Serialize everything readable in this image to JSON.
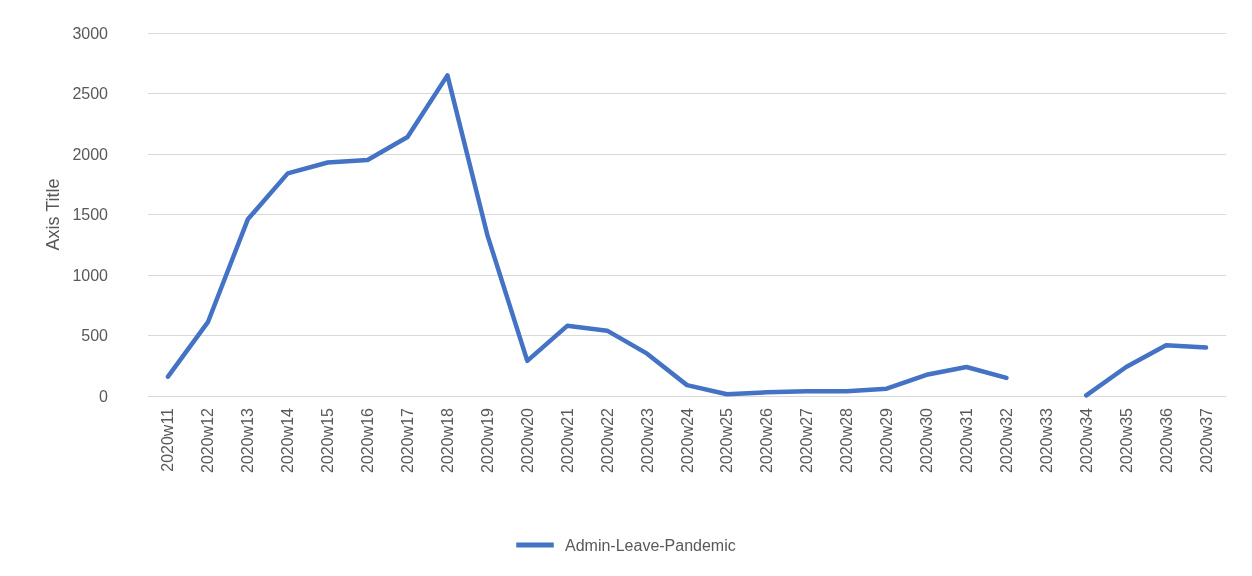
{
  "chart_data": {
    "type": "line",
    "ylabel": "Axis Title",
    "categories": [
      "2020w11",
      "2020w12",
      "2020w13",
      "2020w14",
      "2020w15",
      "2020w16",
      "2020w17",
      "2020w18",
      "2020w19",
      "2020w20",
      "2020w21",
      "2020w22",
      "2020w23",
      "2020w24",
      "2020w25",
      "2020w26",
      "2020w27",
      "2020w28",
      "2020w29",
      "2020w30",
      "2020w31",
      "2020w32",
      "2020w33",
      "2020w34",
      "2020w35",
      "2020w36",
      "2020w37"
    ],
    "series": [
      {
        "name": "Admin-Leave-Pandemic",
        "color": "#4472c4",
        "values": [
          160,
          610,
          1460,
          1840,
          1930,
          1950,
          2140,
          2650,
          1330,
          290,
          580,
          540,
          350,
          90,
          15,
          30,
          40,
          40,
          60,
          175,
          240,
          150,
          null,
          5,
          240,
          420,
          400
        ]
      }
    ],
    "ylim": [
      0,
      3000
    ],
    "yticks": [
      0,
      500,
      1000,
      1500,
      2000,
      2500,
      3000
    ],
    "grid": "y",
    "legend": "bottom",
    "marker": "none",
    "line_style": "solid"
  }
}
